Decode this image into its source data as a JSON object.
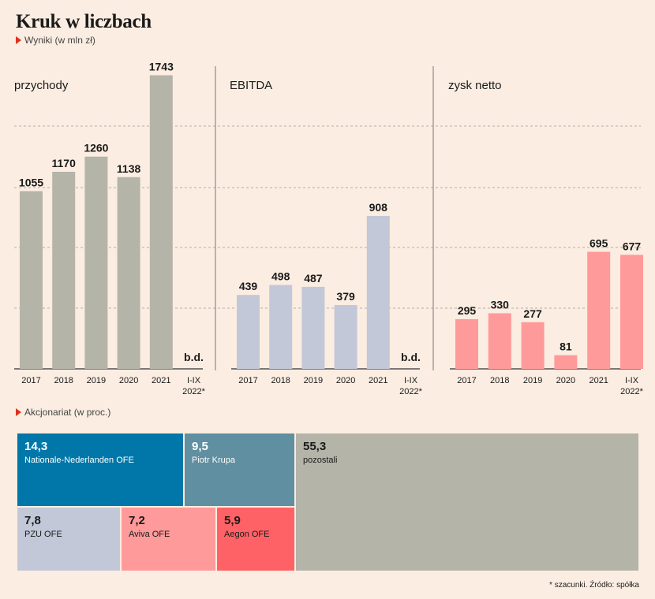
{
  "title": "Kruk w liczbach",
  "subtitle_results": "Wyniki (w mln zł)",
  "subtitle_shareholders": "Akcjonariat (w proc.)",
  "footnote": "* szacunki. Źródło: spółka",
  "colors": {
    "background": "#fbede1",
    "accent": "#e0301e",
    "przychody": "#b4b4a9",
    "ebitda": "#c3c8d8",
    "zysk": "#ff9a9a"
  },
  "chart_data": [
    {
      "type": "bar",
      "title": "przychody",
      "categories": [
        "2017",
        "2018",
        "2019",
        "2020",
        "2021",
        "I-IX 2022*"
      ],
      "values": [
        1055,
        1170,
        1260,
        1138,
        1743,
        null
      ],
      "labels": [
        "1055",
        "1170",
        "1260",
        "1138",
        "1743",
        "b.d."
      ],
      "ylim": [
        0,
        1750
      ],
      "grid": true
    },
    {
      "type": "bar",
      "title": "EBITDA",
      "categories": [
        "2017",
        "2018",
        "2019",
        "2020",
        "2021",
        "I-IX 2022*"
      ],
      "values": [
        439,
        498,
        487,
        379,
        908,
        null
      ],
      "labels": [
        "439",
        "498",
        "487",
        "379",
        "908",
        "b.d."
      ],
      "ylim": [
        0,
        1750
      ],
      "grid": true
    },
    {
      "type": "bar",
      "title": "zysk netto",
      "categories": [
        "2017",
        "2018",
        "2019",
        "2020",
        "2021",
        "I-IX 2022*"
      ],
      "values": [
        295,
        330,
        277,
        81,
        695,
        677
      ],
      "labels": [
        "295",
        "330",
        "277",
        "81",
        "695",
        "677"
      ],
      "ylim": [
        0,
        1750
      ],
      "grid": true
    },
    {
      "type": "treemap",
      "title": "Akcjonariat (w proc.)",
      "items": [
        {
          "name": "Nationale-Nederlanden OFE",
          "value": 14.3,
          "label": "14,3",
          "color": "#0077a8"
        },
        {
          "name": "Piotr Krupa",
          "value": 9.5,
          "label": "9,5",
          "color": "#5f8fa0"
        },
        {
          "name": "pozostali",
          "value": 55.3,
          "label": "55,3",
          "color": "#b4b4a9"
        },
        {
          "name": "PZU OFE",
          "value": 7.8,
          "label": "7,8",
          "color": "#c3c8d8"
        },
        {
          "name": "Aviva OFE",
          "value": 7.2,
          "label": "7,2",
          "color": "#ff9a9a"
        },
        {
          "name": "Aegon OFE",
          "value": 5.9,
          "label": "5,9",
          "color": "#ff6266"
        }
      ]
    }
  ]
}
